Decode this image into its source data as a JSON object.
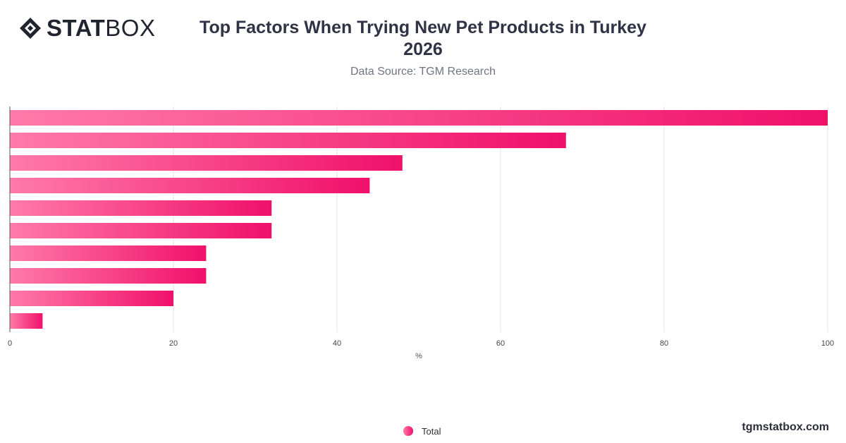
{
  "brand": {
    "logo_bold": "STAT",
    "logo_light": "BOX",
    "site": "tgmstatbox.com"
  },
  "chart_data": {
    "type": "bar",
    "orientation": "horizontal",
    "title_line1": "Top Factors When Trying New Pet Products in Turkey",
    "title_line2": "2026",
    "subtitle": "Data Source: TGM Research",
    "xlabel": "%",
    "xlim": [
      0,
      100
    ],
    "xticks": [
      0,
      20,
      40,
      60,
      80,
      100
    ],
    "grid": true,
    "legend_position": "bottom-center",
    "category_labels_visible": false,
    "series": [
      {
        "name": "Total",
        "color_start": "#ff7aa8",
        "color_end": "#f0106a",
        "values": [
          100,
          68,
          48,
          44,
          32,
          32,
          24,
          24,
          20,
          4
        ]
      }
    ]
  }
}
